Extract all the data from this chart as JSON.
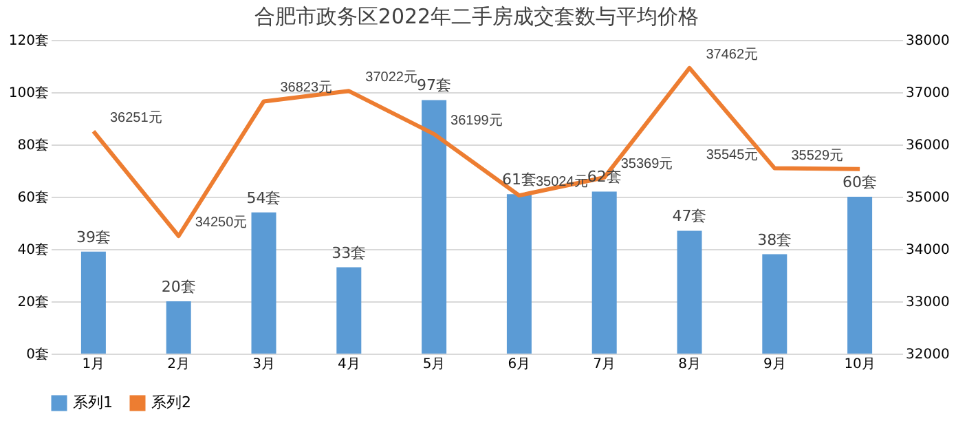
{
  "chart_data": {
    "type": "bar",
    "title": "合肥市政务区2022年二手房成交套数与平均价格",
    "categories": [
      "1月",
      "2月",
      "3月",
      "4月",
      "5月",
      "6月",
      "7月",
      "8月",
      "9月",
      "10月"
    ],
    "series": [
      {
        "name": "系列1",
        "color": "#5b9bd5",
        "values": [
          39,
          20,
          54,
          33,
          97,
          61,
          62,
          47,
          38,
          60
        ],
        "value_labels": [
          "39套",
          "20套",
          "54套",
          "33套",
          "97套",
          "61套",
          "62套",
          "47套",
          "38套",
          "60套"
        ]
      },
      {
        "name": "系列2",
        "type": "line",
        "axis": "y2",
        "color": "#ed7d31",
        "values": [
          36251,
          34250,
          36823,
          37022,
          36199,
          35024,
          35369,
          37462,
          35545,
          35529
        ],
        "value_labels": [
          "36251元",
          "34250元",
          "36823元",
          "37022元",
          "36199元",
          "35024元",
          "35369元",
          "37462元",
          "35545元",
          "35529元"
        ]
      }
    ],
    "ylim": [
      0,
      120
    ],
    "yticks": [
      {
        "value": 0,
        "label": "0套"
      },
      {
        "value": 20,
        "label": "20套"
      },
      {
        "value": 40,
        "label": "40套"
      },
      {
        "value": 60,
        "label": "60套"
      },
      {
        "value": 80,
        "label": "80套"
      },
      {
        "value": 100,
        "label": "100套"
      },
      {
        "value": 120,
        "label": "120套"
      }
    ],
    "y2lim": [
      32000,
      38000
    ],
    "y2ticks": [
      32000,
      33000,
      34000,
      35000,
      36000,
      37000,
      38000
    ],
    "grid": "y",
    "legend": "bottom"
  }
}
